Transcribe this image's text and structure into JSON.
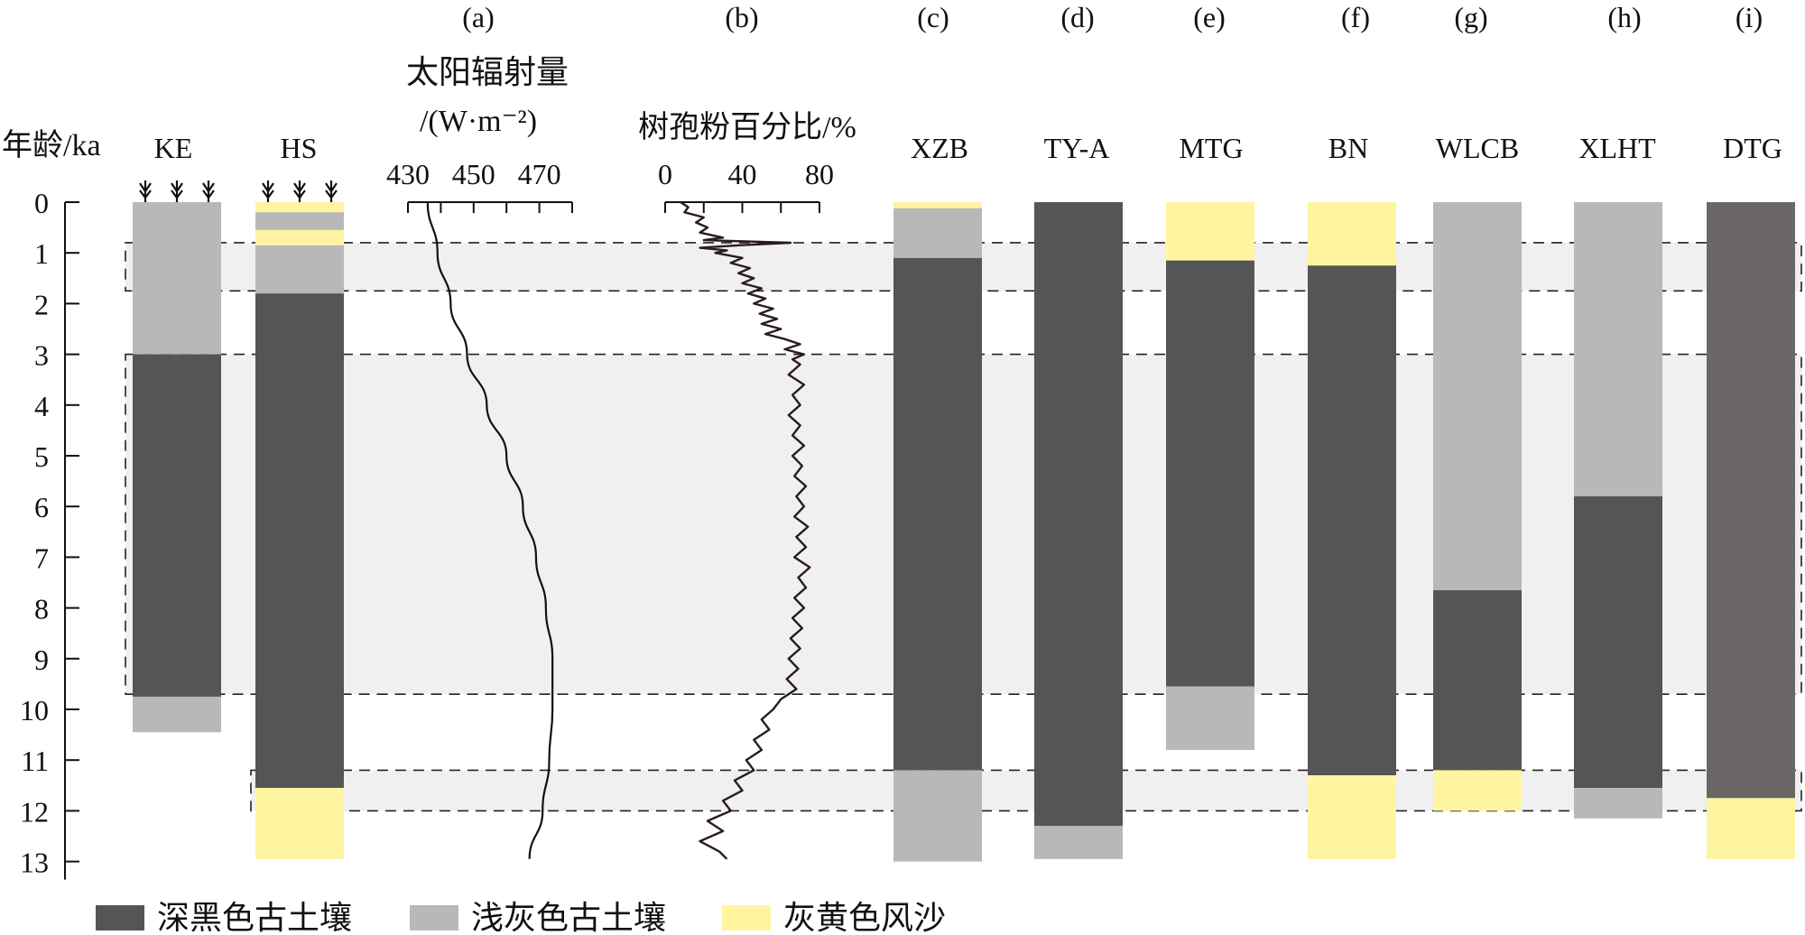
{
  "chart_data": {
    "type": "strata-columns",
    "y_axis": {
      "label": "年龄/ka",
      "ticks": [
        "0",
        "1",
        "2",
        "3",
        "4",
        "5",
        "6",
        "7",
        "8",
        "9",
        "10",
        "11",
        "12",
        "13"
      ],
      "min": 0,
      "max": 13
    },
    "colors": {
      "dark": "#555555",
      "light": "#b8b8b8",
      "yellow": "#fff5a0",
      "dark_alt": "#6b6767",
      "band": "#f0f0f0"
    },
    "shaded_bands": [
      {
        "from": 0.8,
        "to": 1.75
      },
      {
        "from": 3.0,
        "to": 9.7
      },
      {
        "from": 11.2,
        "to": 12.0
      }
    ],
    "columns": [
      {
        "name": "KE",
        "letter": "",
        "marks": true,
        "layers": [
          {
            "from": 0,
            "to": 3.0,
            "type": "light"
          },
          {
            "from": 3.0,
            "to": 9.75,
            "type": "dark"
          },
          {
            "from": 9.75,
            "to": 10.45,
            "type": "light"
          }
        ]
      },
      {
        "name": "HS",
        "letter": "",
        "marks": true,
        "layers": [
          {
            "from": 0,
            "to": 0.2,
            "type": "yellow"
          },
          {
            "from": 0.2,
            "to": 0.55,
            "type": "light"
          },
          {
            "from": 0.55,
            "to": 0.85,
            "type": "yellow"
          },
          {
            "from": 0.85,
            "to": 1.8,
            "type": "light"
          },
          {
            "from": 1.8,
            "to": 11.55,
            "type": "dark"
          },
          {
            "from": 11.55,
            "to": 12.95,
            "type": "yellow"
          }
        ]
      },
      {
        "name": "XZB",
        "letter": "(c)",
        "marks": false,
        "layers": [
          {
            "from": 0,
            "to": 0.12,
            "type": "yellow"
          },
          {
            "from": 0.12,
            "to": 1.1,
            "type": "light"
          },
          {
            "from": 1.1,
            "to": 11.2,
            "type": "dark"
          },
          {
            "from": 11.2,
            "to": 13.0,
            "type": "light"
          }
        ]
      },
      {
        "name": "TY-A",
        "letter": "(d)",
        "marks": false,
        "layers": [
          {
            "from": 0,
            "to": 12.3,
            "type": "dark"
          },
          {
            "from": 12.3,
            "to": 12.95,
            "type": "light"
          }
        ]
      },
      {
        "name": "MTG",
        "letter": "(e)",
        "marks": false,
        "layers": [
          {
            "from": 0,
            "to": 1.15,
            "type": "yellow"
          },
          {
            "from": 1.15,
            "to": 9.55,
            "type": "dark"
          },
          {
            "from": 9.55,
            "to": 10.8,
            "type": "light"
          }
        ]
      },
      {
        "name": "BN",
        "letter": "(f)",
        "marks": false,
        "layers": [
          {
            "from": 0,
            "to": 1.25,
            "type": "yellow"
          },
          {
            "from": 1.25,
            "to": 11.3,
            "type": "dark"
          },
          {
            "from": 11.3,
            "to": 12.95,
            "type": "yellow"
          }
        ]
      },
      {
        "name": "WLCB",
        "letter": "(g)",
        "marks": false,
        "layers": [
          {
            "from": 0,
            "to": 7.65,
            "type": "light"
          },
          {
            "from": 7.65,
            "to": 11.2,
            "type": "dark"
          },
          {
            "from": 11.2,
            "to": 12.0,
            "type": "yellow"
          }
        ]
      },
      {
        "name": "XLHT",
        "letter": "(h)",
        "marks": false,
        "layers": [
          {
            "from": 0,
            "to": 5.8,
            "type": "light"
          },
          {
            "from": 5.8,
            "to": 11.55,
            "type": "dark"
          },
          {
            "from": 11.55,
            "to": 12.15,
            "type": "light"
          }
        ]
      },
      {
        "name": "DTG",
        "letter": "(i)",
        "marks": false,
        "layers": [
          {
            "from": 0,
            "to": 11.75,
            "type": "dark_alt"
          },
          {
            "from": 11.75,
            "to": 12.95,
            "type": "yellow"
          }
        ]
      }
    ],
    "insolation": {
      "letter": "(a)",
      "title_line1": "太阳辐射量",
      "title_line2": "/(W·m⁻²)",
      "tick_labels": [
        "430",
        "450",
        "470"
      ],
      "axis_min": 430,
      "axis_max": 480,
      "points": [
        [
          0,
          436
        ],
        [
          1,
          439
        ],
        [
          2,
          443
        ],
        [
          3,
          448
        ],
        [
          4,
          454
        ],
        [
          5,
          460
        ],
        [
          6,
          465
        ],
        [
          7,
          469
        ],
        [
          8,
          472
        ],
        [
          9,
          474
        ],
        [
          10,
          474
        ],
        [
          11,
          473
        ],
        [
          12,
          471
        ],
        [
          12.95,
          467
        ]
      ]
    },
    "pollen": {
      "letter": "(b)",
      "title": "树孢粉百分比/%",
      "tick_labels": [
        "0",
        "40",
        "80"
      ],
      "axis_min": 0,
      "axis_max": 80,
      "points": [
        [
          0,
          8
        ],
        [
          0.1,
          12
        ],
        [
          0.2,
          10
        ],
        [
          0.3,
          20
        ],
        [
          0.4,
          16
        ],
        [
          0.5,
          22
        ],
        [
          0.6,
          18
        ],
        [
          0.7,
          30
        ],
        [
          0.75,
          20
        ],
        [
          0.8,
          65
        ],
        [
          0.85,
          38
        ],
        [
          0.9,
          18
        ],
        [
          0.95,
          32
        ],
        [
          1.0,
          26
        ],
        [
          1.1,
          40
        ],
        [
          1.2,
          34
        ],
        [
          1.3,
          44
        ],
        [
          1.4,
          38
        ],
        [
          1.5,
          46
        ],
        [
          1.6,
          40
        ],
        [
          1.7,
          50
        ],
        [
          1.8,
          43
        ],
        [
          1.9,
          52
        ],
        [
          2.0,
          46
        ],
        [
          2.1,
          56
        ],
        [
          2.2,
          49
        ],
        [
          2.3,
          58
        ],
        [
          2.4,
          50
        ],
        [
          2.5,
          60
        ],
        [
          2.6,
          52
        ],
        [
          2.7,
          62
        ],
        [
          2.8,
          70
        ],
        [
          2.9,
          62
        ],
        [
          3.0,
          72
        ],
        [
          3.1,
          66
        ],
        [
          3.2,
          70
        ],
        [
          3.4,
          64
        ],
        [
          3.6,
          72
        ],
        [
          3.8,
          66
        ],
        [
          4.0,
          70
        ],
        [
          4.2,
          64
        ],
        [
          4.4,
          70
        ],
        [
          4.6,
          66
        ],
        [
          4.8,
          72
        ],
        [
          5.0,
          66
        ],
        [
          5.2,
          71
        ],
        [
          5.4,
          67
        ],
        [
          5.6,
          73
        ],
        [
          5.8,
          68
        ],
        [
          6.0,
          72
        ],
        [
          6.2,
          67
        ],
        [
          6.4,
          74
        ],
        [
          6.6,
          68
        ],
        [
          6.8,
          73
        ],
        [
          7.0,
          67
        ],
        [
          7.2,
          75
        ],
        [
          7.4,
          69
        ],
        [
          7.6,
          73
        ],
        [
          7.8,
          67
        ],
        [
          8.0,
          72
        ],
        [
          8.2,
          66
        ],
        [
          8.4,
          71
        ],
        [
          8.6,
          65
        ],
        [
          8.8,
          70
        ],
        [
          9.0,
          64
        ],
        [
          9.2,
          69
        ],
        [
          9.4,
          63
        ],
        [
          9.6,
          68
        ],
        [
          9.8,
          60
        ],
        [
          10.0,
          56
        ],
        [
          10.2,
          50
        ],
        [
          10.4,
          54
        ],
        [
          10.6,
          46
        ],
        [
          10.8,
          50
        ],
        [
          11.0,
          42
        ],
        [
          11.2,
          46
        ],
        [
          11.4,
          36
        ],
        [
          11.6,
          40
        ],
        [
          11.8,
          30
        ],
        [
          12.0,
          34
        ],
        [
          12.2,
          22
        ],
        [
          12.4,
          30
        ],
        [
          12.6,
          18
        ],
        [
          12.8,
          28
        ],
        [
          12.95,
          32
        ]
      ]
    },
    "legend": [
      {
        "label": "深黑色古土壤",
        "type": "dark"
      },
      {
        "label": "浅灰色古土壤",
        "type": "light"
      },
      {
        "label": "灰黄色风沙",
        "type": "yellow"
      }
    ]
  }
}
